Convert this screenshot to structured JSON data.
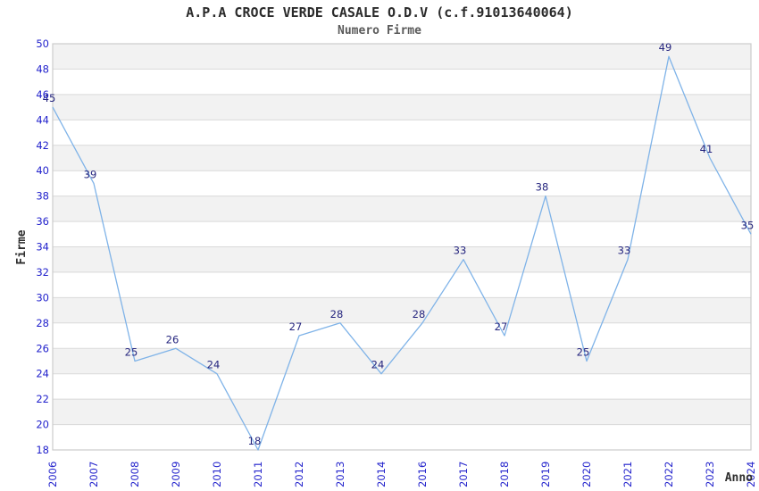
{
  "title": "A.P.A CROCE VERDE CASALE O.D.V (c.f.91013640064)",
  "subtitle": "Numero Firme",
  "chart_data": {
    "type": "line",
    "title": "A.P.A CROCE VERDE CASALE O.D.V (c.f.91013640064)",
    "subtitle": "Numero Firme",
    "categories": [
      "2006",
      "2007",
      "2008",
      "2009",
      "2010",
      "2011",
      "2012",
      "2013",
      "2014",
      "2016",
      "2017",
      "2018",
      "2019",
      "2020",
      "2021",
      "2022",
      "2023",
      "2024"
    ],
    "values": [
      45,
      39,
      25,
      26,
      24,
      18,
      27,
      28,
      24,
      28,
      33,
      27,
      38,
      25,
      33,
      49,
      41,
      35
    ],
    "xlabel": "Anno",
    "ylabel": "Firme",
    "ylim": [
      18,
      50
    ],
    "ytick_step": 2,
    "legend": "none",
    "grid": "horizontal-lines-with-alternating-bands",
    "colors": {
      "line": "#7fb3e8",
      "tick_label": "#2323cc",
      "data_label": "#26267f",
      "band_fill": "#f2f2f2",
      "gridline": "#d9d9d9",
      "plot_border": "#cccccc",
      "title_text": "#2b2b2b",
      "subtitle_text": "#5a5a5a",
      "axis_title_text": "#2e2e2e"
    }
  }
}
